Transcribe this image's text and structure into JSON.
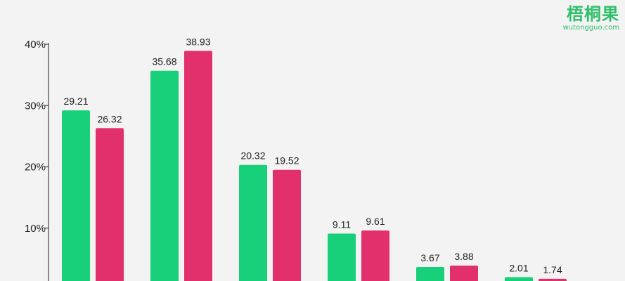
{
  "logo": {
    "name": "梧桐果",
    "url": "wutongguo.com"
  },
  "chart_data": {
    "type": "bar",
    "categories": [
      "",
      "",
      "",
      "",
      "",
      ""
    ],
    "series": [
      {
        "values": [
          29.21,
          35.68,
          20.32,
          9.11,
          3.67,
          2.01
        ],
        "color": "#18cf7a"
      },
      {
        "values": [
          26.32,
          38.93,
          19.52,
          9.61,
          3.88,
          1.74
        ],
        "color": "#e2306c"
      }
    ],
    "y_ticks": [
      "10%",
      "20%",
      "30%",
      "40%"
    ],
    "y_tick_values": [
      10,
      20,
      30,
      40
    ],
    "ylim": [
      0,
      40
    ],
    "grid": false,
    "legend": "none"
  }
}
